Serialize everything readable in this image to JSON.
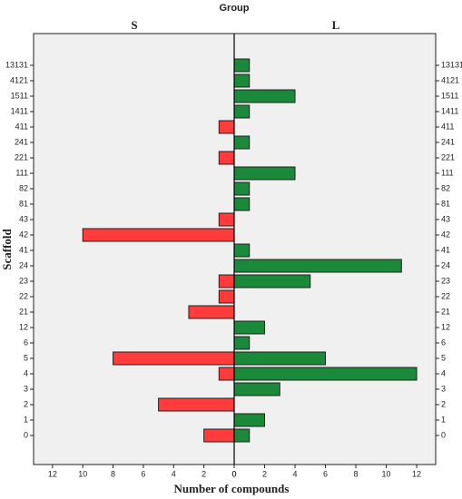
{
  "chart_data": {
    "type": "bar",
    "orientation": "back-to-back",
    "title": "Group",
    "y_label": "Scaffold",
    "x_label": "Number of compounds",
    "categories": [
      "13131",
      "4121",
      "1511",
      "1411",
      "411",
      "241",
      "221",
      "111",
      "82",
      "81",
      "43",
      "42",
      "41",
      "24",
      "23",
      "22",
      "21",
      "12",
      "6",
      "5",
      "4",
      "3",
      "2",
      "1",
      "0"
    ],
    "series": [
      {
        "name": "S",
        "color": "#ff3b3b",
        "values": [
          0,
          0,
          0,
          0,
          1,
          0,
          1,
          0,
          0,
          0,
          1,
          10,
          0,
          0,
          1,
          1,
          3,
          0,
          0,
          8,
          1,
          0,
          5,
          0,
          2
        ]
      },
      {
        "name": "L",
        "color": "#1a8a3a",
        "values": [
          1,
          1,
          4,
          1,
          0,
          1,
          0,
          4,
          1,
          1,
          0,
          0,
          1,
          11,
          5,
          0,
          0,
          2,
          1,
          6,
          12,
          3,
          0,
          2,
          1
        ]
      }
    ],
    "xlim": [
      0,
      13.25
    ],
    "xticks": [
      0,
      2,
      4,
      6,
      8,
      10,
      12
    ]
  }
}
